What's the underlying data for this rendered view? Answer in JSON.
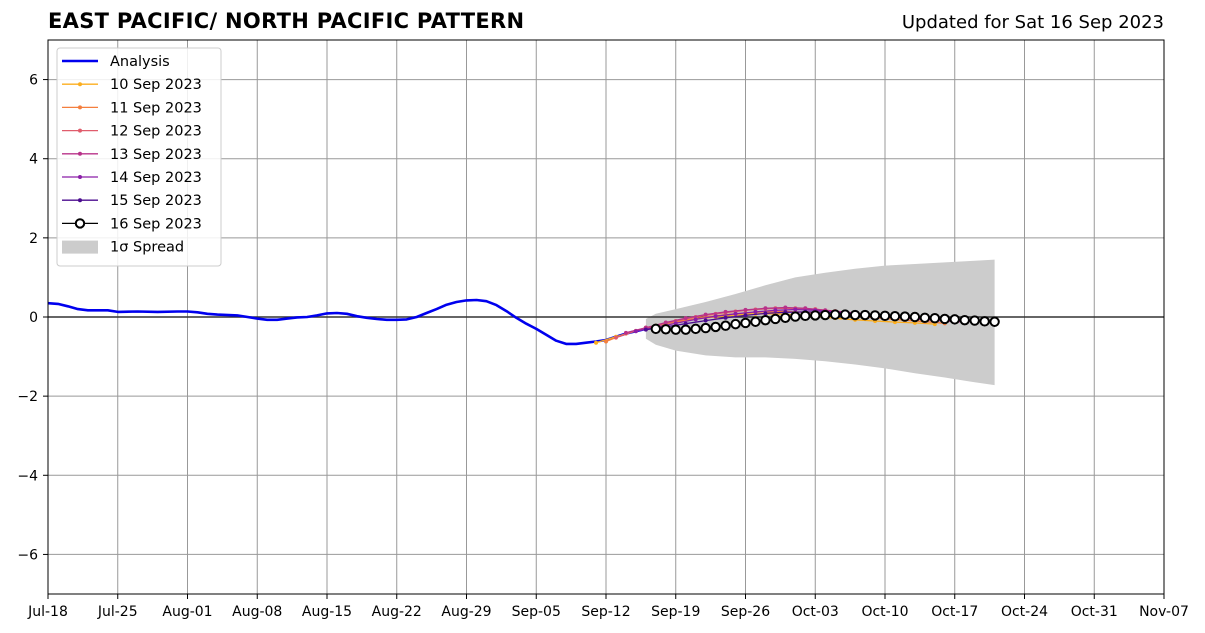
{
  "header": {
    "title": "EAST PACIFIC/ NORTH PACIFIC PATTERN",
    "updated": "Updated for Sat 16 Sep 2023"
  },
  "chart_data": {
    "type": "line",
    "title": "EAST PACIFIC/ NORTH PACIFIC PATTERN",
    "xlabel": "",
    "ylabel": "",
    "xlim": [
      "2023-07-18",
      "2023-11-07"
    ],
    "ylim": [
      -7,
      7
    ],
    "grid": true,
    "legend_position": "top-left",
    "x_ticks": [
      "Jul-18",
      "Jul-25",
      "Aug-01",
      "Aug-08",
      "Aug-15",
      "Aug-22",
      "Aug-29",
      "Sep-05",
      "Sep-12",
      "Sep-19",
      "Sep-26",
      "Oct-03",
      "Oct-10",
      "Oct-17",
      "Oct-24",
      "Oct-31",
      "Nov-07"
    ],
    "y_ticks": [
      -6,
      -4,
      -2,
      0,
      2,
      4,
      6
    ],
    "y_tick_labels": [
      "−6",
      "−4",
      "−2",
      "0",
      "2",
      "4",
      "6"
    ],
    "series": [
      {
        "name": "Analysis",
        "color": "#0000ee",
        "x": [
          "2023-07-18",
          "2023-07-19",
          "2023-07-20",
          "2023-07-21",
          "2023-07-22",
          "2023-07-23",
          "2023-07-24",
          "2023-07-25",
          "2023-07-27",
          "2023-07-29",
          "2023-07-31",
          "2023-08-01",
          "2023-08-02",
          "2023-08-03",
          "2023-08-04",
          "2023-08-06",
          "2023-08-08",
          "2023-08-09",
          "2023-08-10",
          "2023-08-11",
          "2023-08-12",
          "2023-08-13",
          "2023-08-14",
          "2023-08-15",
          "2023-08-16",
          "2023-08-17",
          "2023-08-18",
          "2023-08-19",
          "2023-08-20",
          "2023-08-21",
          "2023-08-22",
          "2023-08-23",
          "2023-08-24",
          "2023-08-25",
          "2023-08-26",
          "2023-08-27",
          "2023-08-28",
          "2023-08-29",
          "2023-08-30",
          "2023-08-31",
          "2023-09-01",
          "2023-09-02",
          "2023-09-03",
          "2023-09-04",
          "2023-09-05",
          "2023-09-06",
          "2023-09-07",
          "2023-09-08",
          "2023-09-09",
          "2023-09-10",
          "2023-09-11",
          "2023-09-12",
          "2023-09-13",
          "2023-09-14",
          "2023-09-15",
          "2023-09-16"
        ],
        "values": [
          0.35,
          0.33,
          0.27,
          0.2,
          0.17,
          0.17,
          0.17,
          0.13,
          0.14,
          0.13,
          0.14,
          0.14,
          0.12,
          0.08,
          0.06,
          0.04,
          -0.04,
          -0.07,
          -0.07,
          -0.04,
          -0.01,
          0.0,
          0.04,
          0.09,
          0.1,
          0.08,
          0.02,
          -0.02,
          -0.05,
          -0.07,
          -0.07,
          -0.06,
          0.0,
          0.1,
          0.2,
          0.31,
          0.38,
          0.42,
          0.43,
          0.4,
          0.3,
          0.15,
          -0.02,
          -0.17,
          -0.3,
          -0.45,
          -0.6,
          -0.68,
          -0.68,
          -0.65,
          -0.62,
          -0.58,
          -0.5,
          -0.42,
          -0.36,
          -0.3
        ]
      },
      {
        "name": "10 Sep 2023",
        "color": "#fcae1e",
        "x": [
          "2023-09-11",
          "2023-09-13",
          "2023-09-15",
          "2023-09-17",
          "2023-09-19",
          "2023-09-21",
          "2023-09-23",
          "2023-09-25",
          "2023-09-27",
          "2023-09-29",
          "2023-10-01",
          "2023-10-03",
          "2023-10-05",
          "2023-10-07",
          "2023-10-09",
          "2023-10-11",
          "2023-10-13",
          "2023-10-15"
        ],
        "values": [
          -0.65,
          -0.5,
          -0.35,
          -0.22,
          -0.12,
          -0.05,
          0.0,
          0.05,
          0.08,
          0.08,
          0.05,
          0.02,
          -0.03,
          -0.07,
          -0.1,
          -0.13,
          -0.15,
          -0.18
        ]
      },
      {
        "name": "11 Sep 2023",
        "color": "#f47f3e",
        "x": [
          "2023-09-12",
          "2023-09-14",
          "2023-09-16",
          "2023-09-18",
          "2023-09-20",
          "2023-09-22",
          "2023-09-24",
          "2023-09-26",
          "2023-09-28",
          "2023-09-30",
          "2023-10-02",
          "2023-10-04",
          "2023-10-06",
          "2023-10-08",
          "2023-10-10",
          "2023-10-12",
          "2023-10-14",
          "2023-10-16"
        ],
        "values": [
          -0.62,
          -0.42,
          -0.27,
          -0.17,
          -0.08,
          0.0,
          0.06,
          0.1,
          0.13,
          0.14,
          0.12,
          0.08,
          0.04,
          0.0,
          -0.04,
          -0.08,
          -0.12,
          -0.16
        ]
      },
      {
        "name": "12 Sep 2023",
        "color": "#e05c6c",
        "x": [
          "2023-09-13",
          "2023-09-15",
          "2023-09-17",
          "2023-09-19",
          "2023-09-21",
          "2023-09-23",
          "2023-09-25",
          "2023-09-27",
          "2023-09-29",
          "2023-10-01",
          "2023-10-03",
          "2023-10-05",
          "2023-10-07",
          "2023-10-09",
          "2023-10-11",
          "2023-10-13",
          "2023-10-15",
          "2023-10-17"
        ],
        "values": [
          -0.52,
          -0.35,
          -0.22,
          -0.1,
          0.0,
          0.08,
          0.14,
          0.19,
          0.22,
          0.22,
          0.2,
          0.15,
          0.1,
          0.05,
          0.0,
          -0.04,
          -0.08,
          -0.12
        ]
      },
      {
        "name": "13 Sep 2023",
        "color": "#b83289",
        "x": [
          "2023-09-14",
          "2023-09-16",
          "2023-09-18",
          "2023-09-20",
          "2023-09-22",
          "2023-09-24",
          "2023-09-26",
          "2023-09-28",
          "2023-09-30",
          "2023-10-02",
          "2023-10-04",
          "2023-10-06",
          "2023-10-08",
          "2023-10-10",
          "2023-10-12",
          "2023-10-14",
          "2023-10-16",
          "2023-10-18"
        ],
        "values": [
          -0.4,
          -0.27,
          -0.14,
          -0.03,
          0.06,
          0.13,
          0.18,
          0.22,
          0.24,
          0.22,
          0.17,
          0.12,
          0.07,
          0.02,
          -0.03,
          -0.07,
          -0.1,
          -0.13
        ]
      },
      {
        "name": "14 Sep 2023",
        "color": "#8b1fa8",
        "x": [
          "2023-09-15",
          "2023-09-17",
          "2023-09-19",
          "2023-09-21",
          "2023-09-23",
          "2023-09-25",
          "2023-09-27",
          "2023-09-29",
          "2023-10-01",
          "2023-10-03",
          "2023-10-05",
          "2023-10-07",
          "2023-10-09",
          "2023-10-11",
          "2023-10-13",
          "2023-10-15",
          "2023-10-17",
          "2023-10-19"
        ],
        "values": [
          -0.36,
          -0.26,
          -0.16,
          -0.06,
          0.02,
          0.08,
          0.13,
          0.17,
          0.19,
          0.17,
          0.13,
          0.09,
          0.05,
          0.01,
          -0.03,
          -0.06,
          -0.09,
          -0.12
        ]
      },
      {
        "name": "15 Sep 2023",
        "color": "#4b0c8f",
        "x": [
          "2023-09-16",
          "2023-09-18",
          "2023-09-20",
          "2023-09-22",
          "2023-09-24",
          "2023-09-26",
          "2023-09-28",
          "2023-09-30",
          "2023-10-02",
          "2023-10-04",
          "2023-10-06",
          "2023-10-08",
          "2023-10-10",
          "2023-10-12",
          "2023-10-14",
          "2023-10-16",
          "2023-10-18",
          "2023-10-20"
        ],
        "values": [
          -0.32,
          -0.25,
          -0.17,
          -0.09,
          -0.02,
          0.04,
          0.09,
          0.12,
          0.13,
          0.12,
          0.09,
          0.06,
          0.03,
          0.0,
          -0.03,
          -0.06,
          -0.08,
          -0.1
        ]
      },
      {
        "name": "16 Sep 2023",
        "color": "#000000",
        "x": [
          "2023-09-17",
          "2023-09-18",
          "2023-09-19",
          "2023-09-20",
          "2023-09-21",
          "2023-09-22",
          "2023-09-23",
          "2023-09-24",
          "2023-09-25",
          "2023-09-26",
          "2023-09-27",
          "2023-09-28",
          "2023-09-29",
          "2023-09-30",
          "2023-10-01",
          "2023-10-02",
          "2023-10-03",
          "2023-10-04",
          "2023-10-05",
          "2023-10-06",
          "2023-10-07",
          "2023-10-08",
          "2023-10-09",
          "2023-10-10",
          "2023-10-11",
          "2023-10-12",
          "2023-10-13",
          "2023-10-14",
          "2023-10-15",
          "2023-10-16",
          "2023-10-17",
          "2023-10-18",
          "2023-10-19",
          "2023-10-20",
          "2023-10-21"
        ],
        "values": [
          -0.3,
          -0.31,
          -0.32,
          -0.32,
          -0.3,
          -0.28,
          -0.25,
          -0.22,
          -0.18,
          -0.15,
          -0.12,
          -0.08,
          -0.05,
          -0.02,
          0.01,
          0.03,
          0.04,
          0.05,
          0.06,
          0.06,
          0.05,
          0.05,
          0.04,
          0.03,
          0.02,
          0.01,
          0.0,
          -0.02,
          -0.03,
          -0.05,
          -0.06,
          -0.08,
          -0.09,
          -0.11,
          -0.12
        ]
      }
    ],
    "spread": {
      "name": "1σ Spread",
      "color": "#cccccc",
      "x": [
        "2023-09-16",
        "2023-09-17",
        "2023-09-19",
        "2023-09-22",
        "2023-09-25",
        "2023-09-28",
        "2023-10-01",
        "2023-10-04",
        "2023-10-07",
        "2023-10-10",
        "2023-10-13",
        "2023-10-16",
        "2023-10-19",
        "2023-10-21"
      ],
      "upper": [
        -0.05,
        0.08,
        0.2,
        0.38,
        0.58,
        0.8,
        1.0,
        1.12,
        1.22,
        1.3,
        1.34,
        1.38,
        1.42,
        1.45
      ],
      "lower": [
        -0.55,
        -0.7,
        -0.85,
        -0.97,
        -1.02,
        -1.02,
        -1.06,
        -1.12,
        -1.2,
        -1.3,
        -1.42,
        -1.53,
        -1.65,
        -1.72
      ]
    }
  }
}
